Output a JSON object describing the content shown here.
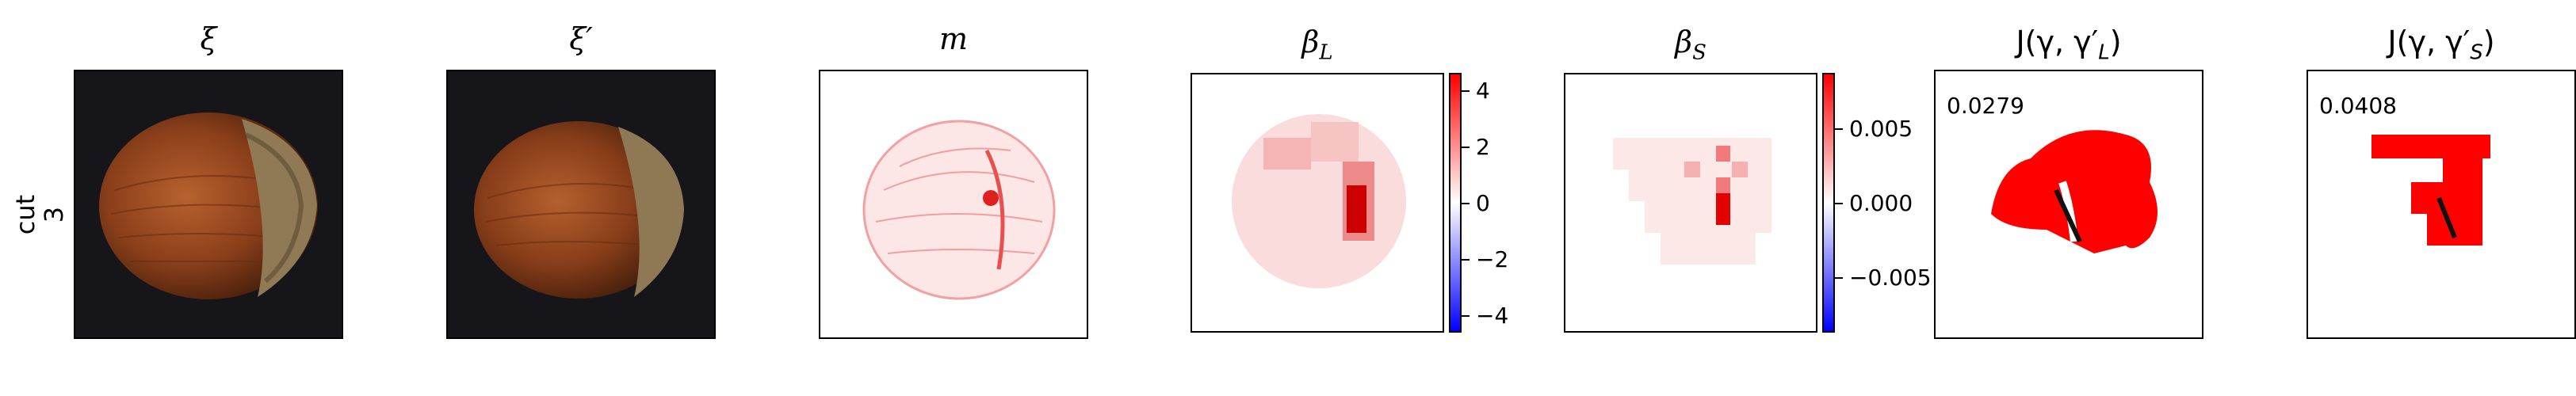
{
  "row": {
    "label_line1": "cut",
    "label_line2": "3"
  },
  "panels": {
    "xi": {
      "title": "ξ"
    },
    "xi_prime": {
      "title": "ξ′"
    },
    "m": {
      "title": "m"
    },
    "beta_l": {
      "title_main": "β",
      "title_sub": "L",
      "colorbar_ticks": [
        "4",
        "2",
        "0",
        "−2",
        "−4"
      ]
    },
    "beta_s": {
      "title_main": "β",
      "title_sub": "S",
      "colorbar_ticks": [
        "0.005",
        "0.000",
        "−0.005"
      ]
    },
    "j_l": {
      "title": "J(γ, γ′L)",
      "title_pre": "J(γ, γ′",
      "title_sub": "L",
      "title_post": ")",
      "score": "0.0279"
    },
    "j_s": {
      "title": "J(γ, γ′S)",
      "title_pre": "J(γ, γ′",
      "title_sub": "S",
      "title_post": ")",
      "score": "0.0408"
    }
  },
  "colors": {
    "red": "#ff0000",
    "blue": "#0000ff",
    "dark_bg": "#15151a"
  }
}
